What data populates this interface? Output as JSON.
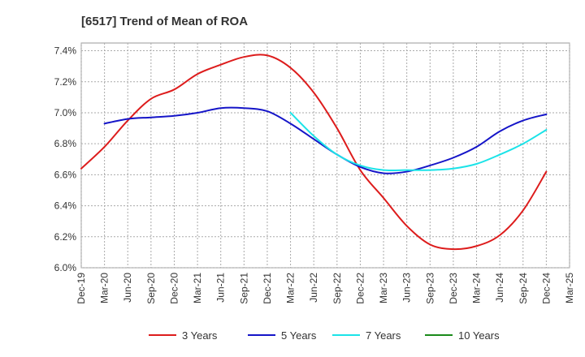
{
  "chart_data": {
    "type": "line",
    "title": "[6517]  Trend of Mean of ROA",
    "xlabel": "",
    "ylabel": "",
    "x": [
      "Dec-19",
      "Mar-20",
      "Jun-20",
      "Sep-20",
      "Dec-20",
      "Mar-21",
      "Jun-21",
      "Sep-21",
      "Dec-21",
      "Mar-22",
      "Jun-22",
      "Sep-22",
      "Dec-22",
      "Mar-23",
      "Jun-23",
      "Sep-23",
      "Dec-23",
      "Mar-24",
      "Jun-24",
      "Sep-24",
      "Dec-24",
      "Mar-25"
    ],
    "y_ticks": [
      "6.0%",
      "6.2%",
      "6.4%",
      "6.6%",
      "6.8%",
      "7.0%",
      "7.2%",
      "7.4%"
    ],
    "ylim": [
      6.0,
      7.45
    ],
    "grid": true,
    "legend_position": "bottom",
    "series": [
      {
        "name": "3 Years",
        "color": "#dd1c1c",
        "values": [
          6.64,
          6.78,
          6.95,
          7.09,
          7.15,
          7.25,
          7.31,
          7.36,
          7.37,
          7.29,
          7.13,
          6.9,
          6.63,
          6.45,
          6.27,
          6.15,
          6.12,
          6.14,
          6.21,
          6.37,
          6.62,
          null
        ]
      },
      {
        "name": "5 Years",
        "color": "#1515c8",
        "values": [
          null,
          6.93,
          6.96,
          6.97,
          6.98,
          7.0,
          7.03,
          7.03,
          7.01,
          6.93,
          6.83,
          6.73,
          6.65,
          6.61,
          6.62,
          6.66,
          6.71,
          6.78,
          6.88,
          6.95,
          6.99,
          null
        ]
      },
      {
        "name": "7 Years",
        "color": "#1be3e8",
        "values": [
          null,
          null,
          null,
          null,
          null,
          null,
          null,
          null,
          null,
          7.0,
          6.85,
          6.73,
          6.66,
          6.63,
          6.63,
          6.63,
          6.64,
          6.67,
          6.73,
          6.8,
          6.89,
          null
        ]
      },
      {
        "name": "10 Years",
        "color": "#1a8a1a",
        "values": [
          null,
          null,
          null,
          null,
          null,
          null,
          null,
          null,
          null,
          null,
          null,
          null,
          null,
          null,
          null,
          null,
          null,
          null,
          null,
          null,
          null,
          null
        ]
      }
    ]
  }
}
